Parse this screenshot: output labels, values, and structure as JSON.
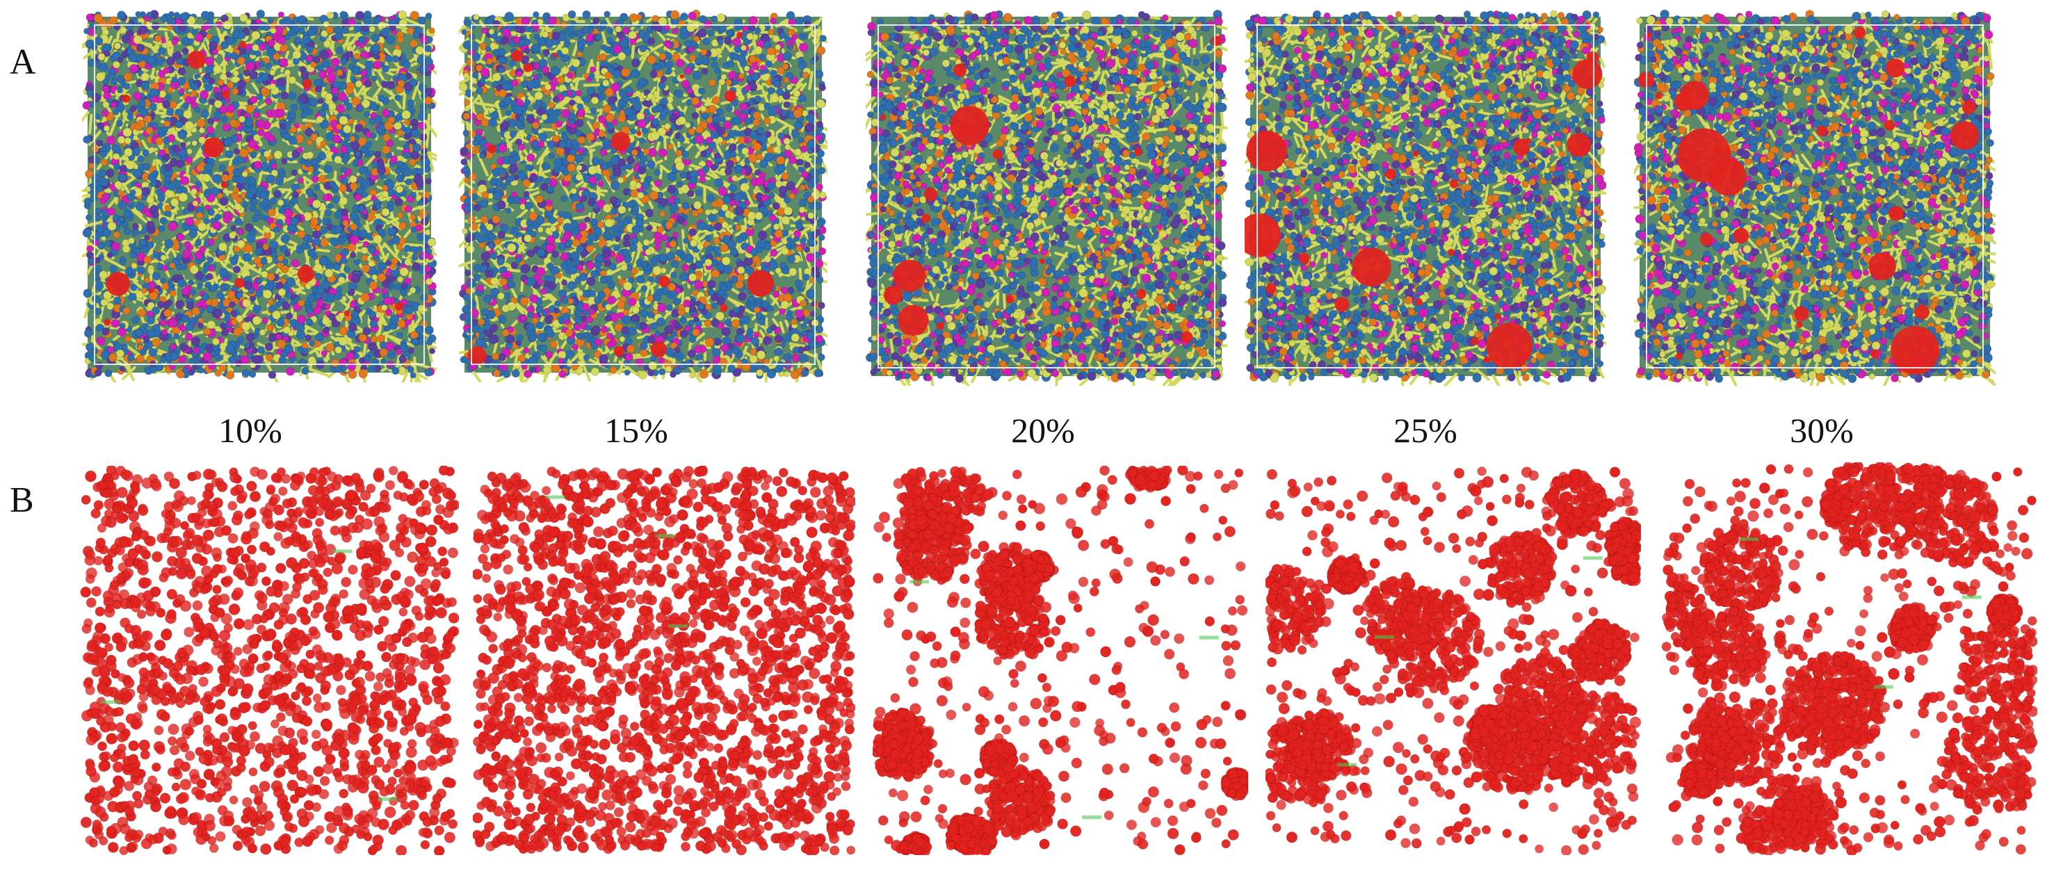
{
  "row_labels": {
    "a": "A",
    "b": "B"
  },
  "concentrations": [
    "10%",
    "15%",
    "20%",
    "25%",
    "30%"
  ],
  "colors": {
    "water_cluster": "#e2231f",
    "blue_bead": "#2f6fb0",
    "yellow_bond": "#d4d95c",
    "magenta_bead": "#d020b8",
    "orange_bead": "#e07820",
    "purple_bead": "#5a3fa0",
    "cell_box": "#ffffff",
    "annotation_text": "#4fc84f"
  },
  "cluster_density_by_panel": [
    0.1,
    0.15,
    0.2,
    0.25,
    0.3
  ]
}
